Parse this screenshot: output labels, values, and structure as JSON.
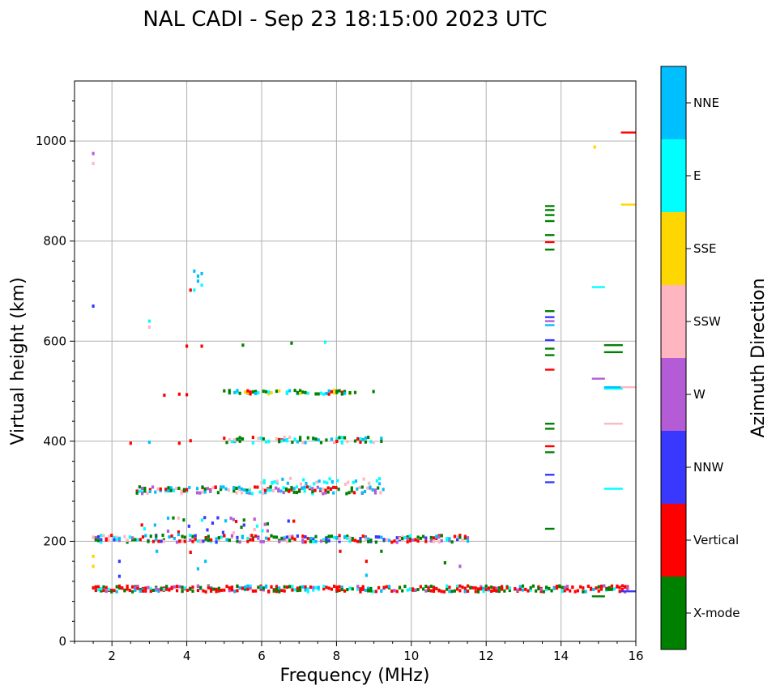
{
  "chart_data": {
    "type": "scatter",
    "title": "NAL CADI - Sep 23 18:15:00 2023 UTC",
    "xlabel": "Frequency (MHz)",
    "ylabel": "Virtual height (km)",
    "xlim": [
      1,
      16
    ],
    "ylim": [
      0,
      1120
    ],
    "x_ticks": [
      2,
      4,
      6,
      8,
      10,
      12,
      14,
      16
    ],
    "y_ticks": [
      0,
      200,
      400,
      600,
      800,
      1000
    ],
    "grid": true,
    "colorbar": {
      "label": "Azimuth Direction",
      "categories": [
        {
          "name": "X-mode",
          "color": "#008000"
        },
        {
          "name": "Vertical",
          "color": "#ff0000"
        },
        {
          "name": "NNW",
          "color": "#3838ff"
        },
        {
          "name": "W",
          "color": "#b35cd6"
        },
        {
          "name": "SSW",
          "color": "#ffb6c1"
        },
        {
          "name": "SSE",
          "color": "#ffd700"
        },
        {
          "name": "E",
          "color": "#00ffff"
        },
        {
          "name": "NNE",
          "color": "#00bfff"
        }
      ]
    },
    "bands": [
      {
        "name": "layer-e-trace",
        "h_center": 105,
        "h_spread": 6,
        "f_start": 1.5,
        "f_end": 15.8,
        "step": 0.07,
        "density": 0.95,
        "colors": [
          "Vertical",
          "Vertical",
          "X-mode",
          "Vertical",
          "NNE",
          "X-mode",
          "W",
          "Vertical",
          "E"
        ]
      },
      {
        "name": "layer-f-trace",
        "h_center": 205,
        "h_spread": 7,
        "f_start": 1.5,
        "f_end": 11.6,
        "step": 0.07,
        "density": 0.85,
        "colors": [
          "Vertical",
          "X-mode",
          "Vertical",
          "NNE",
          "W",
          "E",
          "SSW",
          "NNW",
          "X-mode"
        ]
      },
      {
        "name": "layer-f-extra",
        "h_center": 228,
        "h_spread": 20,
        "f_start": 2.8,
        "f_end": 7.0,
        "step": 0.07,
        "density": 0.35,
        "colors": [
          "NNE",
          "W",
          "E",
          "NNW",
          "SSW",
          "Vertical",
          "X-mode"
        ]
      },
      {
        "name": "second-hop-300",
        "h_center": 302,
        "h_spread": 7,
        "f_start": 2.6,
        "f_end": 9.3,
        "step": 0.07,
        "density": 0.8,
        "colors": [
          "Vertical",
          "X-mode",
          "Vertical",
          "E",
          "NNE",
          "SSW",
          "X-mode",
          "W"
        ]
      },
      {
        "name": "second-hop-top",
        "h_center": 320,
        "h_spread": 6,
        "f_start": 6.0,
        "f_end": 9.2,
        "step": 0.07,
        "density": 0.35,
        "colors": [
          "E",
          "NNE",
          "SSW",
          "E"
        ]
      },
      {
        "name": "third-hop-400",
        "h_center": 402,
        "h_spread": 6,
        "f_start": 5.0,
        "f_end": 9.4,
        "step": 0.07,
        "density": 0.55,
        "colors": [
          "X-mode",
          "E",
          "NNE",
          "E",
          "Vertical",
          "X-mode",
          "SSW"
        ]
      },
      {
        "name": "fourth-hop-500",
        "h_center": 498,
        "h_spread": 4,
        "f_start": 5.0,
        "f_end": 9.0,
        "step": 0.07,
        "density": 0.45,
        "colors": [
          "X-mode",
          "E",
          "NNE",
          "SSE",
          "X-mode",
          "Vertical"
        ]
      },
      {
        "name": "freq-column-13.7",
        "f_center": 13.7,
        "f_width": 0.25,
        "heights": [
          225,
          318,
          333,
          378,
          390,
          425,
          435,
          543,
          572,
          585,
          602,
          632,
          640,
          648,
          660,
          783,
          798,
          812,
          840,
          852,
          862,
          870
        ],
        "colors": [
          "X-mode",
          "NNW",
          "NNW",
          "X-mode",
          "Vertical",
          "X-mode",
          "X-mode",
          "Vertical",
          "X-mode",
          "X-mode",
          "NNW",
          "NNE",
          "W",
          "NNW",
          "X-mode",
          "X-mode",
          "Vertical",
          "X-mode",
          "X-mode",
          "X-mode",
          "X-mode",
          "X-mode"
        ]
      },
      {
        "name": "freq-column-15",
        "f_center": 15.0,
        "f_width": 0.35,
        "heights": [
          90,
          708,
          525
        ],
        "colors": [
          "X-mode",
          "E",
          "W"
        ]
      },
      {
        "name": "freq-column-15.4",
        "f_center": 15.4,
        "f_width": 0.5,
        "heights": [
          305,
          435,
          505,
          508,
          578,
          592
        ],
        "colors": [
          "E",
          "SSW",
          "E",
          "NNE",
          "X-mode",
          "X-mode"
        ]
      },
      {
        "name": "freq-column-15.8",
        "f_center": 15.8,
        "f_width": 0.4,
        "heights": [
          100,
          508,
          873,
          1017
        ],
        "colors": [
          "NNW",
          "SSW",
          "SSE",
          "Vertical"
        ]
      },
      {
        "name": "sparse-upper",
        "points": [
          [
            1.5,
            975,
            "W"
          ],
          [
            1.5,
            955,
            "SSW"
          ],
          [
            1.5,
            670,
            "NNW"
          ],
          [
            3.0,
            640,
            "E"
          ],
          [
            3.0,
            628,
            "SSW"
          ],
          [
            4.2,
            740,
            "NNE"
          ],
          [
            4.3,
            730,
            "NNE"
          ],
          [
            4.4,
            735,
            "NNE"
          ],
          [
            4.1,
            702,
            "Vertical"
          ],
          [
            4.2,
            702,
            "E"
          ],
          [
            4.4,
            712,
            "E"
          ],
          [
            4.3,
            720,
            "NNE"
          ],
          [
            4.0,
            590,
            "Vertical"
          ],
          [
            4.4,
            590,
            "Vertical"
          ],
          [
            5.5,
            592,
            "X-mode"
          ],
          [
            6.8,
            596,
            "X-mode"
          ],
          [
            7.7,
            598,
            "E"
          ],
          [
            14.9,
            988,
            "SSE"
          ],
          [
            8.1,
            180,
            "Vertical"
          ],
          [
            8.8,
            160,
            "Vertical"
          ],
          [
            9.2,
            180,
            "X-mode"
          ],
          [
            10.9,
            157,
            "X-mode"
          ],
          [
            11.3,
            150,
            "W"
          ],
          [
            8.8,
            132,
            "NNE"
          ],
          [
            2.5,
            396,
            "Vertical"
          ],
          [
            3.0,
            398,
            "NNE"
          ],
          [
            3.8,
            396,
            "Vertical"
          ],
          [
            4.1,
            401,
            "Vertical"
          ],
          [
            2.2,
            160,
            "NNW"
          ],
          [
            2.2,
            130,
            "NNW"
          ],
          [
            4.1,
            178,
            "Vertical"
          ],
          [
            4.5,
            160,
            "NNE"
          ],
          [
            3.2,
            180,
            "NNE"
          ],
          [
            4.3,
            145,
            "NNE"
          ],
          [
            1.5,
            170,
            "SSE"
          ],
          [
            1.5,
            150,
            "SSE"
          ],
          [
            3.4,
            492,
            "Vertical"
          ],
          [
            3.8,
            494,
            "Vertical"
          ],
          [
            4.0,
            493,
            "Vertical"
          ]
        ]
      }
    ]
  }
}
